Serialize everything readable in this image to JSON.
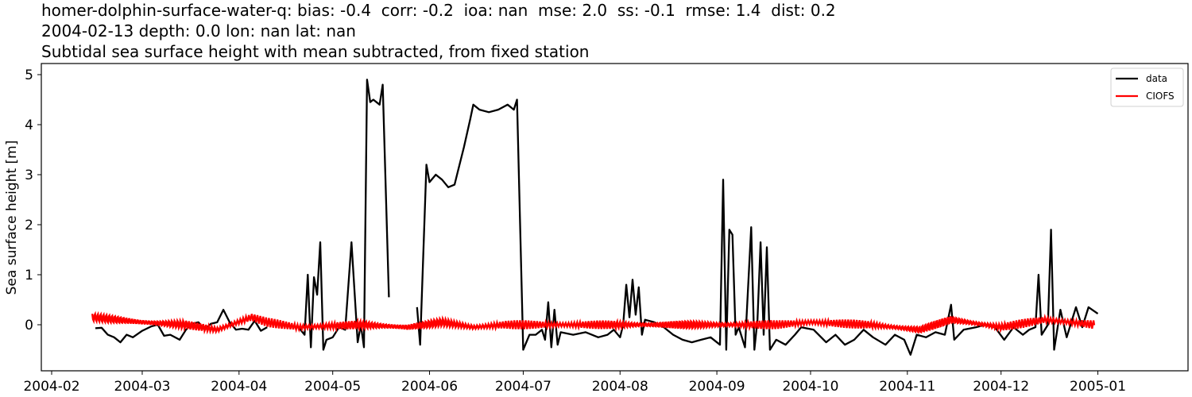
{
  "title": {
    "line1": "homer-dolphin-surface-water-q: bias: -0.4  corr: -0.2  ioa: nan  mse: 2.0  ss: -0.1  rmse: 1.4  dist: 0.2",
    "line2": "2004-02-13 depth: 0.0 lon: nan lat: nan",
    "line3": "Subtidal sea surface height with mean subtracted, from fixed station"
  },
  "axes": {
    "ylabel": "Sea surface height [m]",
    "yticks": [
      "0",
      "1",
      "2",
      "3",
      "4",
      "5"
    ],
    "xticks": [
      "2004-02",
      "2004-03",
      "2004-04",
      "2004-05",
      "2004-06",
      "2004-07",
      "2004-08",
      "2004-09",
      "2004-10",
      "2004-11",
      "2004-12",
      "2005-01"
    ]
  },
  "legend": {
    "items": [
      {
        "label": "data",
        "color": "#000000"
      },
      {
        "label": "CIOFS",
        "color": "#ff0000"
      }
    ]
  },
  "chart_data": {
    "type": "line",
    "title": "homer-dolphin-surface-water-q: bias: -0.4  corr: -0.2  ioa: nan  mse: 2.0  ss: -0.1  rmse: 1.4  dist: 0.2 / 2004-02-13 depth: 0.0 lon: nan lat: nan / Subtidal sea surface height with mean subtracted, from fixed station",
    "xlabel": "",
    "ylabel": "Sea surface height [m]",
    "xlim": [
      "2004-01-28",
      "2005-01-31"
    ],
    "ylim": [
      -0.92,
      5.22
    ],
    "grid": false,
    "legend_position": "upper right",
    "series": [
      {
        "name": "data",
        "color": "#000000",
        "points": [
          [
            "2004-02-15",
            -0.07
          ],
          [
            "2004-02-17",
            -0.06
          ],
          [
            "2004-02-19",
            -0.2
          ],
          [
            "2004-02-21",
            -0.25
          ],
          [
            "2004-02-23",
            -0.35
          ],
          [
            "2004-02-25",
            -0.2
          ],
          [
            "2004-02-27",
            -0.25
          ],
          [
            "2004-03-01",
            -0.12
          ],
          [
            "2004-03-04",
            -0.03
          ],
          [
            "2004-03-06",
            0.0
          ],
          [
            "2004-03-08",
            -0.22
          ],
          [
            "2004-03-10",
            -0.2
          ],
          [
            "2004-03-13",
            -0.3
          ],
          [
            "2004-03-15",
            -0.1
          ],
          [
            "2004-03-17",
            0.02
          ],
          [
            "2004-03-19",
            0.05
          ],
          [
            "2004-03-21",
            -0.1
          ],
          [
            "2004-03-23",
            0.02
          ],
          [
            "2004-03-25",
            0.05
          ],
          [
            "2004-03-27",
            0.3
          ],
          [
            "2004-03-29",
            0.05
          ],
          [
            "2004-03-31",
            -0.1
          ],
          [
            "2004-04-02",
            -0.08
          ],
          [
            "2004-04-04",
            -0.1
          ],
          [
            "2004-04-06",
            0.08
          ],
          [
            "2004-04-08",
            -0.12
          ],
          [
            "2004-04-10",
            -0.05
          ],
          [
            "2004-04-20",
            -0.05
          ],
          [
            "2004-04-22",
            -0.2
          ],
          [
            "2004-04-23",
            1.0
          ],
          [
            "2004-04-24",
            -0.45
          ],
          [
            "2004-04-25",
            0.95
          ],
          [
            "2004-04-26",
            0.6
          ],
          [
            "2004-04-27",
            1.65
          ],
          [
            "2004-04-28",
            -0.5
          ],
          [
            "2004-04-29",
            -0.3
          ],
          [
            "2004-05-01",
            -0.25
          ],
          [
            "2004-05-03",
            -0.05
          ],
          [
            "2004-05-05",
            -0.1
          ],
          [
            "2004-05-07",
            1.65
          ],
          [
            "2004-05-09",
            -0.35
          ],
          [
            "2004-05-10",
            0.0
          ],
          [
            "2004-05-11",
            -0.45
          ],
          [
            "2004-05-12",
            4.9
          ],
          [
            "2004-05-13",
            4.45
          ],
          [
            "2004-05-14",
            4.5
          ],
          [
            "2004-05-16",
            4.4
          ],
          [
            "2004-05-17",
            4.8
          ],
          [
            "2004-05-19",
            0.55
          ],
          [
            "2004-05-28",
            0.35
          ],
          [
            "2004-05-29",
            -0.4
          ],
          [
            "2004-05-31",
            3.2
          ],
          [
            "2004-06-01",
            2.85
          ],
          [
            "2004-06-03",
            3.0
          ],
          [
            "2004-06-05",
            2.9
          ],
          [
            "2004-06-07",
            2.75
          ],
          [
            "2004-06-09",
            2.8
          ],
          [
            "2004-06-10",
            3.05
          ],
          [
            "2004-06-12",
            3.55
          ],
          [
            "2004-06-14",
            4.1
          ],
          [
            "2004-06-15",
            4.4
          ],
          [
            "2004-06-17",
            4.3
          ],
          [
            "2004-06-20",
            4.25
          ],
          [
            "2004-06-23",
            4.3
          ],
          [
            "2004-06-26",
            4.4
          ],
          [
            "2004-06-28",
            4.3
          ],
          [
            "2004-06-29",
            4.5
          ],
          [
            "2004-07-01",
            -0.5
          ],
          [
            "2004-07-03",
            -0.2
          ],
          [
            "2004-07-05",
            -0.2
          ],
          [
            "2004-07-07",
            -0.1
          ],
          [
            "2004-07-08",
            -0.3
          ],
          [
            "2004-07-09",
            0.45
          ],
          [
            "2004-07-10",
            -0.45
          ],
          [
            "2004-07-11",
            0.3
          ],
          [
            "2004-07-12",
            -0.4
          ],
          [
            "2004-07-13",
            -0.15
          ],
          [
            "2004-07-17",
            -0.2
          ],
          [
            "2004-07-21",
            -0.15
          ],
          [
            "2004-07-25",
            -0.25
          ],
          [
            "2004-07-28",
            -0.2
          ],
          [
            "2004-07-30",
            -0.1
          ],
          [
            "2004-08-01",
            -0.25
          ],
          [
            "2004-08-02",
            0.0
          ],
          [
            "2004-08-03",
            0.8
          ],
          [
            "2004-08-04",
            0.15
          ],
          [
            "2004-08-05",
            0.9
          ],
          [
            "2004-08-06",
            0.2
          ],
          [
            "2004-08-07",
            0.75
          ],
          [
            "2004-08-08",
            -0.2
          ],
          [
            "2004-08-09",
            0.1
          ],
          [
            "2004-08-12",
            0.05
          ],
          [
            "2004-08-15",
            -0.05
          ],
          [
            "2004-08-18",
            -0.2
          ],
          [
            "2004-08-21",
            -0.3
          ],
          [
            "2004-08-24",
            -0.35
          ],
          [
            "2004-08-27",
            -0.3
          ],
          [
            "2004-08-30",
            -0.25
          ],
          [
            "2004-09-02",
            -0.4
          ],
          [
            "2004-09-03",
            2.9
          ],
          [
            "2004-09-04",
            -0.5
          ],
          [
            "2004-09-05",
            1.9
          ],
          [
            "2004-09-06",
            1.8
          ],
          [
            "2004-09-07",
            -0.2
          ],
          [
            "2004-09-08",
            -0.05
          ],
          [
            "2004-09-10",
            -0.45
          ],
          [
            "2004-09-12",
            1.95
          ],
          [
            "2004-09-13",
            -0.5
          ],
          [
            "2004-09-14",
            0.1
          ],
          [
            "2004-09-15",
            1.65
          ],
          [
            "2004-09-16",
            -0.2
          ],
          [
            "2004-09-17",
            1.55
          ],
          [
            "2004-09-18",
            -0.5
          ],
          [
            "2004-09-20",
            -0.3
          ],
          [
            "2004-09-23",
            -0.4
          ],
          [
            "2004-09-26",
            -0.2
          ],
          [
            "2004-09-28",
            -0.05
          ],
          [
            "2004-10-02",
            -0.1
          ],
          [
            "2004-10-06",
            -0.35
          ],
          [
            "2004-10-09",
            -0.2
          ],
          [
            "2004-10-12",
            -0.4
          ],
          [
            "2004-10-15",
            -0.3
          ],
          [
            "2004-10-18",
            -0.1
          ],
          [
            "2004-10-21",
            -0.25
          ],
          [
            "2004-10-25",
            -0.4
          ],
          [
            "2004-10-28",
            -0.2
          ],
          [
            "2004-10-31",
            -0.3
          ],
          [
            "2004-11-02",
            -0.6
          ],
          [
            "2004-11-04",
            -0.2
          ],
          [
            "2004-11-07",
            -0.25
          ],
          [
            "2004-11-10",
            -0.15
          ],
          [
            "2004-11-13",
            -0.2
          ],
          [
            "2004-11-15",
            0.4
          ],
          [
            "2004-11-16",
            -0.3
          ],
          [
            "2004-11-19",
            -0.1
          ],
          [
            "2004-11-23",
            -0.05
          ],
          [
            "2004-11-26",
            0.0
          ],
          [
            "2004-11-29",
            -0.05
          ],
          [
            "2004-12-02",
            -0.3
          ],
          [
            "2004-12-05",
            -0.05
          ],
          [
            "2004-12-08",
            -0.2
          ],
          [
            "2004-12-10",
            -0.1
          ],
          [
            "2004-12-12",
            -0.05
          ],
          [
            "2004-12-13",
            1.0
          ],
          [
            "2004-12-14",
            -0.2
          ],
          [
            "2004-12-16",
            0.0
          ],
          [
            "2004-12-17",
            1.9
          ],
          [
            "2004-12-18",
            -0.5
          ],
          [
            "2004-12-20",
            0.3
          ],
          [
            "2004-12-22",
            -0.25
          ],
          [
            "2004-12-25",
            0.35
          ],
          [
            "2004-12-27",
            -0.05
          ],
          [
            "2004-12-29",
            0.35
          ],
          [
            "2005-01-01",
            0.22
          ]
        ]
      },
      {
        "name": "CIOFS",
        "color": "#ff0000",
        "description": "oscillating high-frequency series hovering around 0 m with ~0.1 m amplitude",
        "points": [
          [
            "2004-02-14",
            0.15
          ],
          [
            "2004-03-01",
            0.05
          ],
          [
            "2004-03-15",
            0.0
          ],
          [
            "2004-03-25",
            -0.1
          ],
          [
            "2004-04-05",
            0.15
          ],
          [
            "2004-04-10",
            0.05
          ],
          [
            "2004-04-20",
            -0.05
          ],
          [
            "2004-05-10",
            0.0
          ],
          [
            "2004-05-25",
            -0.05
          ],
          [
            "2004-06-05",
            0.05
          ],
          [
            "2004-06-15",
            -0.05
          ],
          [
            "2004-06-25",
            0.0
          ],
          [
            "2004-07-15",
            0.0
          ],
          [
            "2004-08-01",
            0.0
          ],
          [
            "2004-08-15",
            0.0
          ],
          [
            "2004-09-01",
            0.0
          ],
          [
            "2004-09-20",
            0.0
          ],
          [
            "2004-10-01",
            0.05
          ],
          [
            "2004-10-20",
            0.0
          ],
          [
            "2004-11-05",
            -0.1
          ],
          [
            "2004-11-15",
            0.1
          ],
          [
            "2004-12-01",
            -0.05
          ],
          [
            "2004-12-15",
            0.1
          ],
          [
            "2004-12-31",
            0.0
          ]
        ]
      }
    ]
  }
}
